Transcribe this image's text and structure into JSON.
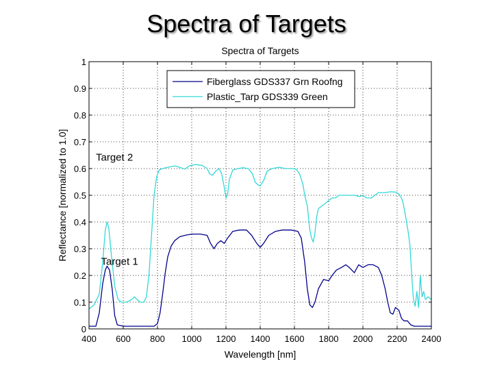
{
  "slide": {
    "title": "Spectra of Targets"
  },
  "chart_data": {
    "type": "line",
    "title": "Spectra of Targets",
    "xlabel": "Wavelength [nm]",
    "ylabel": "Reflectance [normalized to 1.0]",
    "xlim": [
      400,
      2400
    ],
    "ylim": [
      0,
      1
    ],
    "xticks": [
      "400",
      "600",
      "800",
      "1000",
      "1200",
      "1400",
      "1600",
      "1800",
      "2000",
      "2200",
      "2400"
    ],
    "yticks": [
      "0",
      "0.1",
      "0.2",
      "0.3",
      "0.4",
      "0.5",
      "0.6",
      "0.7",
      "0.8",
      "0.9",
      "1"
    ],
    "grid": true,
    "legend_position": "top-right",
    "annotations": [
      {
        "text": "Target 2",
        "x": 440,
        "y": 0.63
      },
      {
        "text": "Target 1",
        "x": 470,
        "y": 0.24
      }
    ],
    "series": [
      {
        "name": "Fiberglass GDS337 Grn Roofng",
        "color": "#00008b",
        "points": [
          [
            400,
            0.01
          ],
          [
            440,
            0.01
          ],
          [
            460,
            0.06
          ],
          [
            480,
            0.17
          ],
          [
            495,
            0.22
          ],
          [
            505,
            0.235
          ],
          [
            520,
            0.22
          ],
          [
            535,
            0.15
          ],
          [
            550,
            0.05
          ],
          [
            565,
            0.015
          ],
          [
            600,
            0.01
          ],
          [
            700,
            0.01
          ],
          [
            780,
            0.01
          ],
          [
            800,
            0.02
          ],
          [
            815,
            0.06
          ],
          [
            830,
            0.13
          ],
          [
            845,
            0.21
          ],
          [
            860,
            0.27
          ],
          [
            880,
            0.31
          ],
          [
            900,
            0.33
          ],
          [
            930,
            0.345
          ],
          [
            960,
            0.35
          ],
          [
            1000,
            0.355
          ],
          [
            1050,
            0.355
          ],
          [
            1090,
            0.35
          ],
          [
            1110,
            0.32
          ],
          [
            1130,
            0.3
          ],
          [
            1150,
            0.32
          ],
          [
            1170,
            0.33
          ],
          [
            1190,
            0.32
          ],
          [
            1210,
            0.34
          ],
          [
            1240,
            0.365
          ],
          [
            1280,
            0.37
          ],
          [
            1320,
            0.37
          ],
          [
            1350,
            0.35
          ],
          [
            1380,
            0.32
          ],
          [
            1400,
            0.305
          ],
          [
            1420,
            0.32
          ],
          [
            1450,
            0.35
          ],
          [
            1490,
            0.365
          ],
          [
            1530,
            0.37
          ],
          [
            1580,
            0.37
          ],
          [
            1620,
            0.365
          ],
          [
            1640,
            0.34
          ],
          [
            1660,
            0.25
          ],
          [
            1675,
            0.15
          ],
          [
            1690,
            0.09
          ],
          [
            1705,
            0.08
          ],
          [
            1720,
            0.1
          ],
          [
            1740,
            0.15
          ],
          [
            1770,
            0.185
          ],
          [
            1800,
            0.18
          ],
          [
            1820,
            0.2
          ],
          [
            1845,
            0.22
          ],
          [
            1875,
            0.23
          ],
          [
            1900,
            0.24
          ],
          [
            1920,
            0.23
          ],
          [
            1950,
            0.21
          ],
          [
            1975,
            0.24
          ],
          [
            2000,
            0.23
          ],
          [
            2030,
            0.24
          ],
          [
            2060,
            0.24
          ],
          [
            2090,
            0.23
          ],
          [
            2110,
            0.2
          ],
          [
            2130,
            0.15
          ],
          [
            2145,
            0.1
          ],
          [
            2160,
            0.06
          ],
          [
            2175,
            0.055
          ],
          [
            2190,
            0.08
          ],
          [
            2210,
            0.07
          ],
          [
            2225,
            0.04
          ],
          [
            2240,
            0.03
          ],
          [
            2260,
            0.03
          ],
          [
            2280,
            0.015
          ],
          [
            2300,
            0.01
          ],
          [
            2350,
            0.01
          ],
          [
            2400,
            0.01
          ]
        ]
      },
      {
        "name": "Plastic_Tarp GDS339 Green",
        "color": "#30d8d8",
        "points": [
          [
            400,
            0.075
          ],
          [
            430,
            0.09
          ],
          [
            460,
            0.13
          ],
          [
            480,
            0.25
          ],
          [
            495,
            0.37
          ],
          [
            505,
            0.4
          ],
          [
            515,
            0.38
          ],
          [
            530,
            0.28
          ],
          [
            550,
            0.16
          ],
          [
            570,
            0.11
          ],
          [
            590,
            0.1
          ],
          [
            620,
            0.1
          ],
          [
            650,
            0.11
          ],
          [
            665,
            0.12
          ],
          [
            680,
            0.11
          ],
          [
            700,
            0.1
          ],
          [
            720,
            0.1
          ],
          [
            735,
            0.12
          ],
          [
            750,
            0.2
          ],
          [
            765,
            0.35
          ],
          [
            780,
            0.5
          ],
          [
            795,
            0.57
          ],
          [
            810,
            0.595
          ],
          [
            830,
            0.6
          ],
          [
            860,
            0.605
          ],
          [
            900,
            0.61
          ],
          [
            930,
            0.605
          ],
          [
            960,
            0.598
          ],
          [
            985,
            0.61
          ],
          [
            1020,
            0.615
          ],
          [
            1060,
            0.612
          ],
          [
            1090,
            0.6
          ],
          [
            1105,
            0.58
          ],
          [
            1120,
            0.575
          ],
          [
            1140,
            0.59
          ],
          [
            1160,
            0.6
          ],
          [
            1175,
            0.58
          ],
          [
            1190,
            0.53
          ],
          [
            1200,
            0.49
          ],
          [
            1210,
            0.505
          ],
          [
            1220,
            0.56
          ],
          [
            1240,
            0.595
          ],
          [
            1270,
            0.6
          ],
          [
            1300,
            0.603
          ],
          [
            1330,
            0.6
          ],
          [
            1355,
            0.58
          ],
          [
            1370,
            0.55
          ],
          [
            1385,
            0.54
          ],
          [
            1400,
            0.535
          ],
          [
            1420,
            0.555
          ],
          [
            1440,
            0.59
          ],
          [
            1470,
            0.6
          ],
          [
            1510,
            0.605
          ],
          [
            1550,
            0.6
          ],
          [
            1580,
            0.6
          ],
          [
            1610,
            0.598
          ],
          [
            1630,
            0.58
          ],
          [
            1650,
            0.54
          ],
          [
            1660,
            0.5
          ],
          [
            1675,
            0.46
          ],
          [
            1690,
            0.37
          ],
          [
            1700,
            0.34
          ],
          [
            1710,
            0.325
          ],
          [
            1720,
            0.36
          ],
          [
            1730,
            0.42
          ],
          [
            1740,
            0.45
          ],
          [
            1760,
            0.46
          ],
          [
            1780,
            0.47
          ],
          [
            1800,
            0.48
          ],
          [
            1820,
            0.49
          ],
          [
            1840,
            0.49
          ],
          [
            1860,
            0.5
          ],
          [
            1890,
            0.5
          ],
          [
            1920,
            0.5
          ],
          [
            1950,
            0.5
          ],
          [
            1980,
            0.495
          ],
          [
            2000,
            0.5
          ],
          [
            2020,
            0.49
          ],
          [
            2050,
            0.49
          ],
          [
            2070,
            0.5
          ],
          [
            2090,
            0.51
          ],
          [
            2130,
            0.51
          ],
          [
            2160,
            0.513
          ],
          [
            2190,
            0.512
          ],
          [
            2210,
            0.505
          ],
          [
            2225,
            0.49
          ],
          [
            2235,
            0.47
          ],
          [
            2250,
            0.42
          ],
          [
            2265,
            0.36
          ],
          [
            2275,
            0.31
          ],
          [
            2285,
            0.2
          ],
          [
            2295,
            0.11
          ],
          [
            2305,
            0.085
          ],
          [
            2315,
            0.14
          ],
          [
            2325,
            0.08
          ],
          [
            2335,
            0.2
          ],
          [
            2345,
            0.12
          ],
          [
            2355,
            0.14
          ],
          [
            2365,
            0.11
          ],
          [
            2380,
            0.12
          ],
          [
            2400,
            0.11
          ]
        ]
      }
    ]
  }
}
